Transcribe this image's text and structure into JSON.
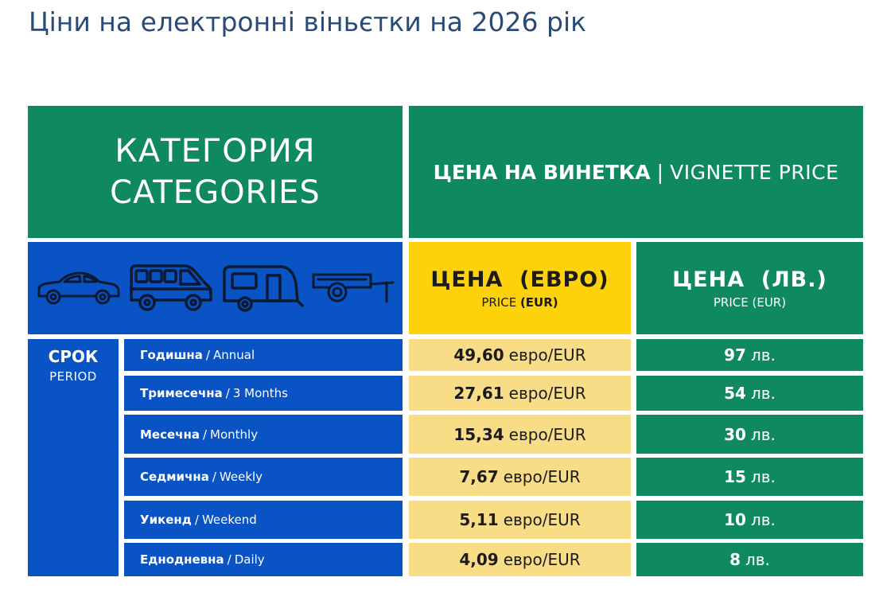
{
  "page": {
    "heading": "Ціни на електронні віньєтки на 2026 рік"
  },
  "header": {
    "category_bg": "КАТЕГОРИЯ",
    "category_en": "CATEGORIES",
    "vignette_bg": "ЦЕНА НА ВИНЕТКА",
    "separator": "|",
    "vignette_en": "VIGNETTE PRICE"
  },
  "vehicles": {
    "icons": [
      "car-icon",
      "minibus-icon",
      "caravan-icon",
      "trailer-icon"
    ]
  },
  "price_headers": {
    "eur": {
      "main": "ЦЕНА  (ЕВРО)",
      "sub_prefix": "PRICE",
      "sub_bold": "(EUR)"
    },
    "bgn": {
      "main": "ЦЕНА  (ЛВ.)",
      "sub": "PRICE (EUR)"
    }
  },
  "period": {
    "label_bg": "СРОК",
    "label_en": "PERIOD"
  },
  "rows": [
    {
      "name_bg": "Годишна",
      "name_en": "Annual",
      "eur_value": "49,60",
      "eur_unit": "евро/EUR",
      "bgn_value": "97",
      "bgn_unit": "лв."
    },
    {
      "name_bg": "Тримесечна",
      "name_en": "3 Months",
      "eur_value": "27,61",
      "eur_unit": "евро/EUR",
      "bgn_value": "54",
      "bgn_unit": "лв."
    },
    {
      "name_bg": "Месечна",
      "name_en": "Monthly",
      "eur_value": "15,34",
      "eur_unit": "евро/EUR",
      "bgn_value": "30",
      "bgn_unit": "лв."
    },
    {
      "name_bg": "Седмична",
      "name_en": "Weekly",
      "eur_value": "7,67",
      "eur_unit": "евро/EUR",
      "bgn_value": "15",
      "bgn_unit": "лв."
    },
    {
      "name_bg": "Уикенд",
      "name_en": "Weekend",
      "eur_value": "5,11",
      "eur_unit": "евро/EUR",
      "bgn_value": "10",
      "bgn_unit": "лв."
    },
    {
      "name_bg": "Еднодневна",
      "name_en": "Daily",
      "eur_value": "4,09",
      "eur_unit": "евро/EUR",
      "bgn_value": "8",
      "bgn_unit": "лв."
    }
  ],
  "colors": {
    "green": "#0f8a5f",
    "blue": "#0a53c4",
    "yellow": "#fdd20b",
    "light_yellow": "#f8dc86",
    "heading": "#2a4a78"
  }
}
